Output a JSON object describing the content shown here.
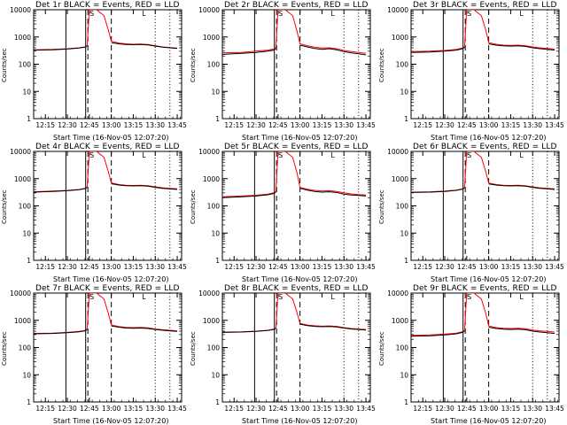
{
  "figure": {
    "panel_titles": [
      "Det 1r  BLACK = Events, RED = LLD",
      "Det 2r  BLACK = Events, RED = LLD",
      "Det 3r  BLACK = Events, RED = LLD",
      "Det 4r  BLACK = Events, RED = LLD",
      "Det 5r  BLACK = Events, RED = LLD",
      "Det 6r  BLACK = Events, RED = LLD",
      "Det 7r  BLACK = Events, RED = LLD",
      "Det 8r  BLACK = Events, RED = LLD",
      "Det 9r  BLACK = Events, RED = LLD"
    ],
    "xlabel": "Start Time (16-Nov-05 12:07:20)",
    "ylabel": "Counts/sec",
    "marker_S": "S",
    "marker_L": "L"
  },
  "chart_data": {
    "type": "line",
    "panels": 9,
    "layout": "3x3",
    "x_tick_labels": [
      "12:15",
      "12:30",
      "12:45",
      "13:00",
      "13:15",
      "13:30",
      "13:45"
    ],
    "x_ticks_minutes": [
      15,
      30,
      45,
      60,
      75,
      90,
      105
    ],
    "xlim_minutes_after_12h": [
      7,
      108
    ],
    "yscale": "log",
    "ylim": [
      1,
      10000
    ],
    "y_tick_labels": [
      "1",
      "10",
      "100",
      "1000",
      "10000"
    ],
    "colors": {
      "events": "#000000",
      "lld": "#ff0000"
    },
    "vertical_lines": [
      {
        "x": 29,
        "style": "solid"
      },
      {
        "x": 42.5,
        "style": "solid"
      },
      {
        "x": 44,
        "style": "dashed"
      },
      {
        "x": 60,
        "style": "dashed"
      },
      {
        "x": 90,
        "style": "dotted"
      },
      {
        "x": 100,
        "style": "dotted"
      }
    ],
    "series_x": [
      7,
      20,
      30,
      38,
      42,
      43.5,
      45,
      50,
      55,
      58,
      60,
      65,
      70,
      75,
      80,
      85,
      90,
      95,
      100,
      105
    ],
    "panels_data": [
      {
        "title": "Det 1r",
        "events": [
          330,
          340,
          360,
          390,
          420,
          470,
          null,
          null,
          null,
          null,
          620,
          560,
          530,
          520,
          530,
          510,
          460,
          420,
          400,
          380
        ],
        "lld": [
          340,
          350,
          370,
          400,
          430,
          480,
          10000,
          10000,
          6000,
          1800,
          700,
          600,
          560,
          540,
          550,
          530,
          480,
          430,
          410,
          390
        ]
      },
      {
        "title": "Det 2r",
        "events": [
          230,
          250,
          270,
          300,
          330,
          380,
          null,
          null,
          null,
          null,
          500,
          430,
          380,
          350,
          370,
          340,
          290,
          260,
          240,
          220
        ],
        "lld": [
          260,
          270,
          300,
          330,
          360,
          410,
          10000,
          10000,
          6000,
          1600,
          560,
          480,
          420,
          390,
          400,
          370,
          320,
          290,
          270,
          250
        ]
      },
      {
        "title": "Det 3r",
        "events": [
          270,
          280,
          300,
          330,
          370,
          420,
          null,
          null,
          null,
          null,
          560,
          500,
          470,
          460,
          470,
          450,
          400,
          370,
          350,
          330
        ],
        "lld": [
          290,
          300,
          320,
          350,
          390,
          440,
          10000,
          10000,
          6000,
          1800,
          620,
          540,
          500,
          490,
          500,
          480,
          430,
          400,
          380,
          360
        ]
      },
      {
        "title": "Det 4r",
        "events": [
          320,
          340,
          360,
          390,
          430,
          480,
          null,
          null,
          null,
          null,
          650,
          580,
          550,
          540,
          550,
          530,
          480,
          440,
          420,
          400
        ],
        "lld": [
          330,
          350,
          370,
          400,
          440,
          490,
          10000,
          10000,
          6000,
          1800,
          700,
          610,
          570,
          560,
          570,
          550,
          500,
          460,
          440,
          420
        ]
      },
      {
        "title": "Det 5r",
        "events": [
          200,
          215,
          230,
          255,
          280,
          320,
          null,
          null,
          null,
          null,
          440,
          380,
          340,
          320,
          330,
          310,
          270,
          250,
          240,
          230
        ],
        "lld": [
          215,
          230,
          245,
          270,
          300,
          340,
          10000,
          10000,
          6000,
          1600,
          480,
          410,
          370,
          350,
          360,
          340,
          300,
          275,
          260,
          250
        ]
      },
      {
        "title": "Det 6r",
        "events": [
          310,
          320,
          340,
          370,
          410,
          460,
          null,
          null,
          null,
          null,
          640,
          580,
          550,
          540,
          550,
          530,
          480,
          440,
          420,
          400
        ],
        "lld": [
          320,
          330,
          350,
          380,
          420,
          470,
          10000,
          10000,
          6000,
          1800,
          690,
          610,
          570,
          560,
          570,
          550,
          500,
          460,
          440,
          420
        ]
      },
      {
        "title": "Det 7r",
        "events": [
          320,
          330,
          350,
          380,
          410,
          460,
          null,
          null,
          null,
          null,
          620,
          560,
          520,
          510,
          520,
          500,
          460,
          430,
          410,
          390
        ],
        "lld": [
          330,
          340,
          360,
          390,
          420,
          470,
          10000,
          10000,
          6000,
          1800,
          670,
          590,
          550,
          540,
          550,
          530,
          480,
          450,
          430,
          410
        ]
      },
      {
        "title": "Det 8r",
        "events": [
          360,
          370,
          390,
          420,
          460,
          510,
          null,
          null,
          null,
          null,
          720,
          640,
          600,
          580,
          590,
          570,
          520,
          480,
          460,
          440
        ],
        "lld": [
          370,
          380,
          400,
          430,
          470,
          520,
          10000,
          10000,
          6000,
          1900,
          770,
          670,
          630,
          610,
          620,
          600,
          540,
          500,
          480,
          460
        ]
      },
      {
        "title": "Det 9r",
        "events": [
          260,
          270,
          290,
          320,
          360,
          410,
          null,
          null,
          null,
          null,
          560,
          500,
          470,
          460,
          470,
          450,
          400,
          370,
          350,
          330
        ],
        "lld": [
          280,
          290,
          310,
          340,
          380,
          430,
          10000,
          10000,
          6000,
          1800,
          620,
          540,
          510,
          500,
          510,
          490,
          440,
          410,
          390,
          370
        ]
      }
    ]
  }
}
